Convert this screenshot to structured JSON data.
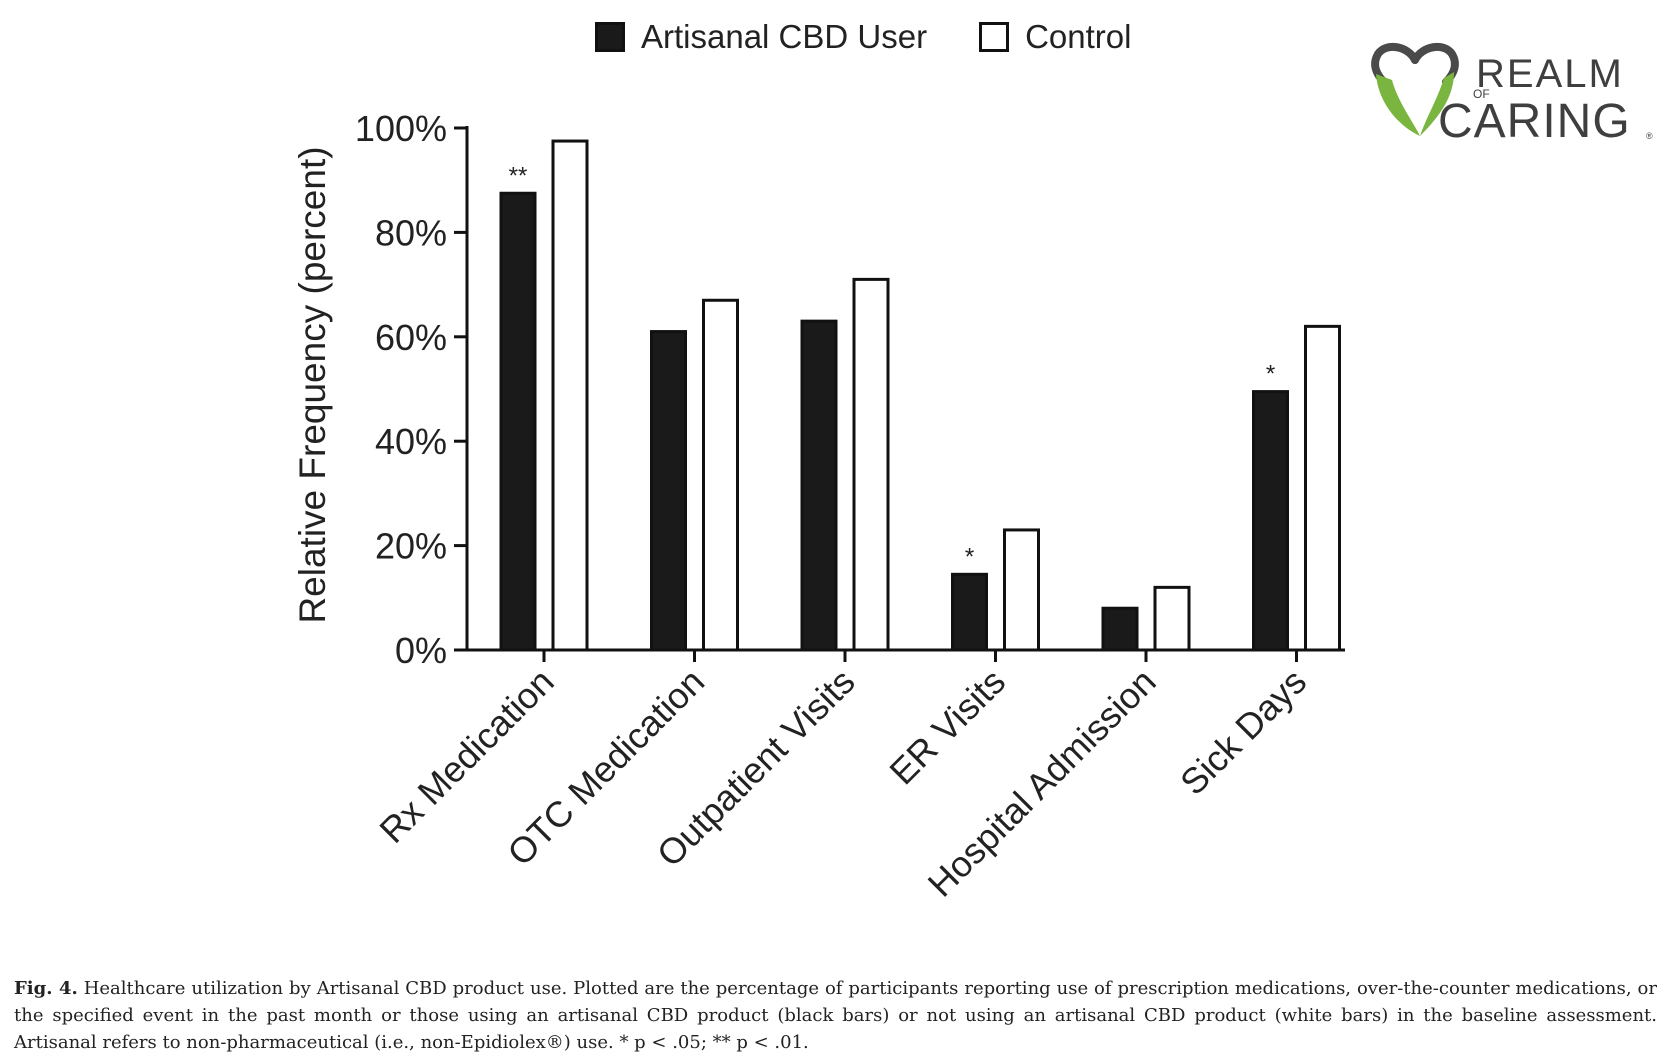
{
  "legend": {
    "series_a": "Artisanal CBD User",
    "series_b": "Control"
  },
  "logo": {
    "word1": "REALM",
    "word2": "OF",
    "word3": "CARING",
    "mark": "®",
    "colors": {
      "green": "#7ab540",
      "gray": "#4a4a4a"
    }
  },
  "caption": {
    "label": "Fig. 4.",
    "text": "Healthcare utilization by Artisanal CBD product use. Plotted are the percentage of participants reporting use of prescription medications, over-the-counter medications, or the specified event in the past month or those using an artisanal CBD product (black bars) or not using an artisanal CBD product (white bars) in the baseline assessment. Artisanal refers to non-pharmaceutical (i.e., non-Epidiolex®) use. * p < .05; ** p < .01."
  },
  "chart_data": {
    "type": "bar",
    "title": "",
    "xlabel": "",
    "ylabel": "Relative Frequency (percent)",
    "ylim": [
      0,
      100
    ],
    "yticks": [
      0,
      20,
      40,
      60,
      80,
      100
    ],
    "ytick_labels": [
      "0%",
      "20%",
      "40%",
      "60%",
      "80%",
      "100%"
    ],
    "categories": [
      "Rx Medication",
      "OTC Medication",
      "Outpatient Visits",
      "ER Visits",
      "Hospital Admission",
      "Sick Days"
    ],
    "series": [
      {
        "name": "Artisanal CBD User",
        "color": "#1a1a1a",
        "values": [
          87.5,
          61,
          63,
          14.5,
          8,
          49.5
        ]
      },
      {
        "name": "Control",
        "color": "#ffffff",
        "values": [
          97.5,
          67,
          71,
          23,
          12,
          62
        ]
      }
    ],
    "annotations": [
      "**",
      "",
      "",
      "*",
      "",
      "*"
    ],
    "grid": false,
    "legend_position": "top-center"
  }
}
